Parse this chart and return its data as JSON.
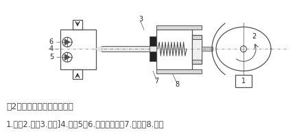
{
  "bg_color": "#ffffff",
  "line_color": "#505050",
  "dark_color": "#222222",
  "fill_light": "#d8d8d8",
  "fill_dark": "#222222",
  "caption_line1": "图2往复单柱塞泵结构示意图",
  "caption_line2": "1.电机2.凸轮3.柱塞]4.泵腔5、6.吸、排单向阀7.密封环8.弹簧",
  "caption_color": "#444444",
  "caption_fontsize": 9.0,
  "figsize": [
    4.49,
    1.98
  ],
  "dpi": 100
}
